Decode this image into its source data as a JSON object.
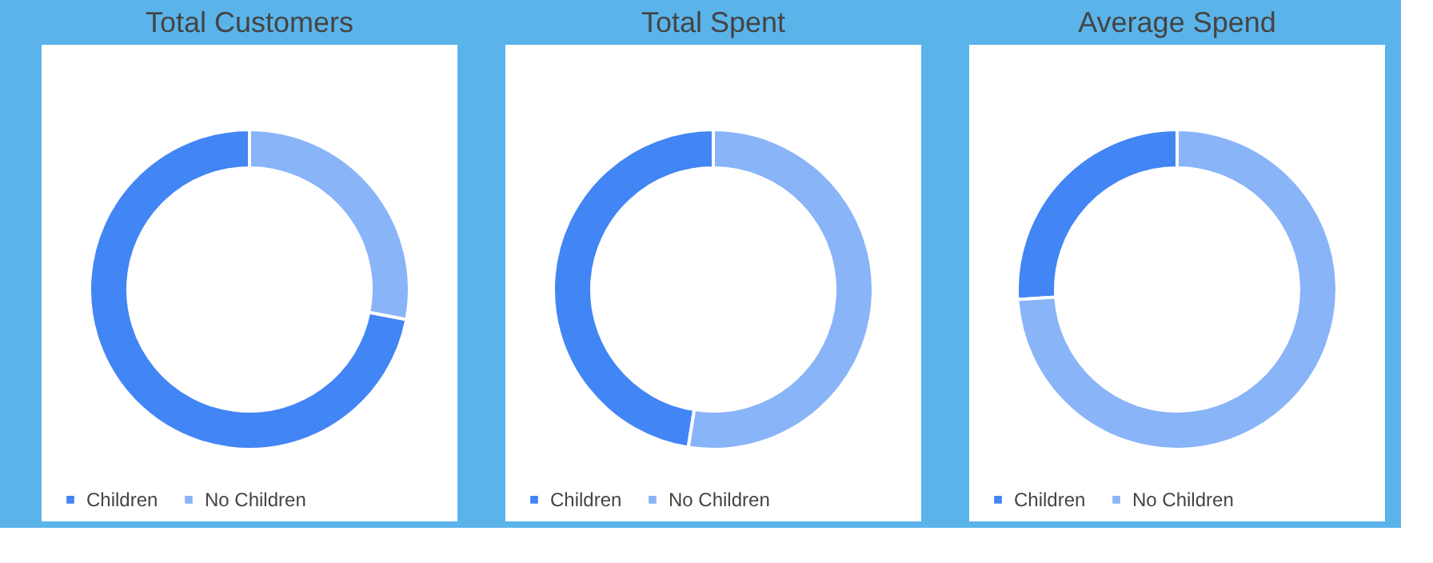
{
  "chart_data": [
    {
      "type": "donut",
      "title": "Total Customers",
      "categories": [
        "Children",
        "No Children"
      ],
      "values": [
        72,
        28
      ],
      "colors": [
        "#4285f4",
        "#8ab4f8"
      ],
      "legend": "bottom"
    },
    {
      "type": "donut",
      "title": "Total Spent",
      "categories": [
        "Children",
        "No Children"
      ],
      "values": [
        47.5,
        52.5
      ],
      "colors": [
        "#4285f4",
        "#8ab4f8"
      ],
      "legend": "bottom"
    },
    {
      "type": "donut",
      "title": "Average Spend",
      "categories": [
        "Children",
        "No Children"
      ],
      "values": [
        26,
        74
      ],
      "colors": [
        "#4285f4",
        "#8ab4f8"
      ],
      "legend": "bottom"
    }
  ]
}
